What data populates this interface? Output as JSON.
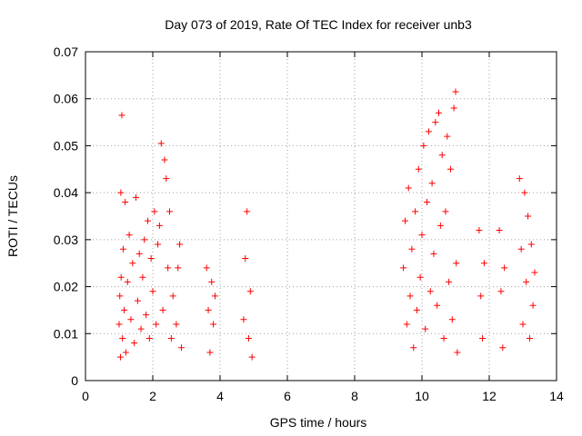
{
  "chart_data": {
    "type": "scatter",
    "title": "Day 073 of 2019, Rate Of TEC Index for receiver unb3",
    "xlabel": "GPS time / hours",
    "ylabel": "ROTI / TECUs",
    "xlim": [
      0,
      14
    ],
    "ylim": [
      0,
      0.07
    ],
    "x_ticks": [
      "0",
      "2",
      "4",
      "6",
      "8",
      "10",
      "12",
      "14"
    ],
    "y_ticks": [
      "0",
      "0.01",
      "0.02",
      "0.03",
      "0.04",
      "0.05",
      "0.06",
      "0.07"
    ],
    "grid": true,
    "marker": "+",
    "marker_color": "#ff0000",
    "series": [
      {
        "points": [
          [
            1.0,
            0.012
          ],
          [
            1.02,
            0.018
          ],
          [
            1.04,
            0.005
          ],
          [
            1.05,
            0.04
          ],
          [
            1.06,
            0.022
          ],
          [
            1.08,
            0.0565
          ],
          [
            1.1,
            0.009
          ],
          [
            1.12,
            0.028
          ],
          [
            1.15,
            0.015
          ],
          [
            1.18,
            0.038
          ],
          [
            1.2,
            0.006
          ],
          [
            1.25,
            0.021
          ],
          [
            1.3,
            0.031
          ],
          [
            1.35,
            0.013
          ],
          [
            1.4,
            0.025
          ],
          [
            1.45,
            0.008
          ],
          [
            1.5,
            0.039
          ],
          [
            1.55,
            0.017
          ],
          [
            1.6,
            0.027
          ],
          [
            1.65,
            0.011
          ],
          [
            1.7,
            0.022
          ],
          [
            1.75,
            0.03
          ],
          [
            1.8,
            0.014
          ],
          [
            1.85,
            0.034
          ],
          [
            1.9,
            0.009
          ],
          [
            1.95,
            0.026
          ],
          [
            2.0,
            0.019
          ],
          [
            2.05,
            0.036
          ],
          [
            2.1,
            0.012
          ],
          [
            2.15,
            0.029
          ],
          [
            2.2,
            0.033
          ],
          [
            2.25,
            0.0505
          ],
          [
            2.3,
            0.015
          ],
          [
            2.35,
            0.047
          ],
          [
            2.4,
            0.043
          ],
          [
            2.45,
            0.024
          ],
          [
            2.5,
            0.036
          ],
          [
            2.55,
            0.009
          ],
          [
            2.6,
            0.018
          ],
          [
            2.7,
            0.012
          ],
          [
            2.75,
            0.024
          ],
          [
            2.8,
            0.029
          ],
          [
            2.85,
            0.007
          ],
          [
            3.6,
            0.024
          ],
          [
            3.65,
            0.015
          ],
          [
            3.7,
            0.006
          ],
          [
            3.75,
            0.021
          ],
          [
            3.8,
            0.012
          ],
          [
            3.85,
            0.018
          ],
          [
            4.7,
            0.013
          ],
          [
            4.75,
            0.026
          ],
          [
            4.8,
            0.036
          ],
          [
            4.85,
            0.009
          ],
          [
            4.9,
            0.019
          ],
          [
            4.95,
            0.005
          ],
          [
            9.45,
            0.024
          ],
          [
            9.5,
            0.034
          ],
          [
            9.55,
            0.012
          ],
          [
            9.6,
            0.041
          ],
          [
            9.65,
            0.018
          ],
          [
            9.7,
            0.028
          ],
          [
            9.75,
            0.007
          ],
          [
            9.8,
            0.036
          ],
          [
            9.85,
            0.015
          ],
          [
            9.9,
            0.045
          ],
          [
            9.95,
            0.022
          ],
          [
            10.0,
            0.031
          ],
          [
            10.05,
            0.05
          ],
          [
            10.1,
            0.011
          ],
          [
            10.15,
            0.038
          ],
          [
            10.2,
            0.053
          ],
          [
            10.25,
            0.019
          ],
          [
            10.3,
            0.042
          ],
          [
            10.35,
            0.027
          ],
          [
            10.4,
            0.055
          ],
          [
            10.45,
            0.016
          ],
          [
            10.5,
            0.057
          ],
          [
            10.55,
            0.033
          ],
          [
            10.6,
            0.048
          ],
          [
            10.65,
            0.009
          ],
          [
            10.7,
            0.036
          ],
          [
            10.75,
            0.052
          ],
          [
            10.8,
            0.021
          ],
          [
            10.85,
            0.045
          ],
          [
            10.9,
            0.013
          ],
          [
            10.95,
            0.058
          ],
          [
            11.0,
            0.0615
          ],
          [
            11.02,
            0.025
          ],
          [
            11.05,
            0.006
          ],
          [
            11.7,
            0.032
          ],
          [
            11.75,
            0.018
          ],
          [
            11.8,
            0.009
          ],
          [
            11.85,
            0.025
          ],
          [
            12.3,
            0.032
          ],
          [
            12.35,
            0.019
          ],
          [
            12.4,
            0.007
          ],
          [
            12.45,
            0.024
          ],
          [
            12.9,
            0.043
          ],
          [
            12.95,
            0.028
          ],
          [
            13.0,
            0.012
          ],
          [
            13.05,
            0.04
          ],
          [
            13.1,
            0.021
          ],
          [
            13.15,
            0.035
          ],
          [
            13.2,
            0.009
          ],
          [
            13.25,
            0.029
          ],
          [
            13.3,
            0.016
          ],
          [
            13.35,
            0.023
          ]
        ]
      }
    ]
  }
}
